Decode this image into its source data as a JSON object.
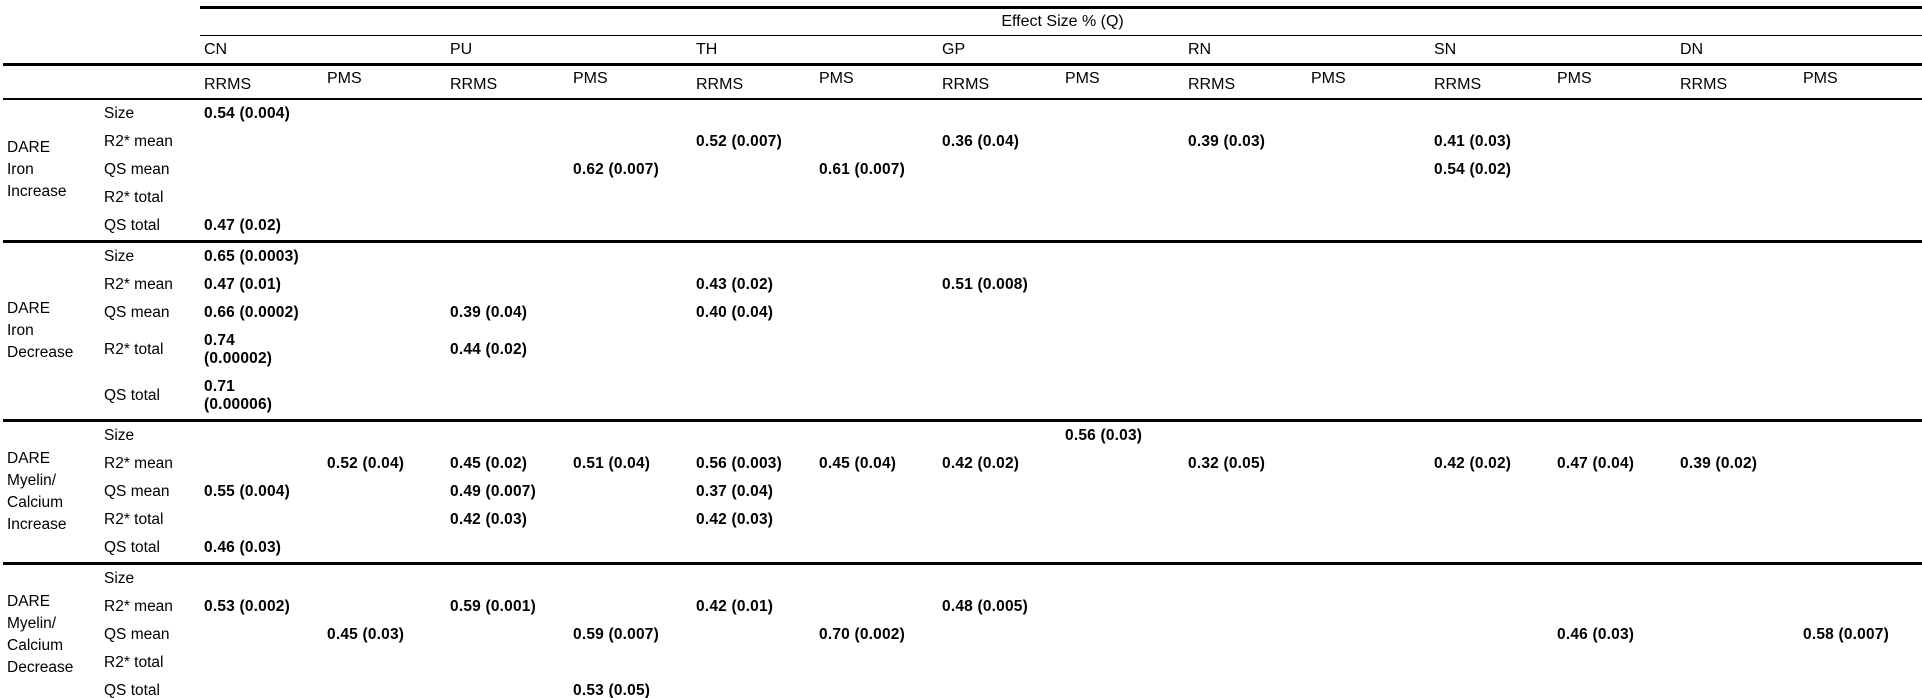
{
  "table": {
    "title": "Effect Size % (Q)",
    "regions": [
      "CN",
      "PU",
      "TH",
      "GP",
      "RN",
      "SN",
      "DN"
    ],
    "subcolumns": [
      "RRMS",
      "PMS"
    ],
    "row_labels": [
      "Size",
      "R2* mean",
      "QS mean",
      "R2* total",
      "QS total"
    ],
    "column_order": [
      "CN RRMS",
      "CN PMS",
      "PU RRMS",
      "PU PMS",
      "TH RRMS",
      "TH PMS",
      "GP RRMS",
      "GP PMS",
      "RN RRMS",
      "RN PMS",
      "SN RRMS",
      "SN PMS",
      "DN RRMS",
      "DN PMS"
    ],
    "groups": [
      {
        "label": "DARE\nIron\nIncrease",
        "rows": [
          {
            "label": "Size",
            "cells": [
              "0.54 (0.004)",
              "",
              "",
              "",
              "",
              "",
              "",
              "",
              "",
              "",
              "",
              "",
              "",
              ""
            ]
          },
          {
            "label": "R2* mean",
            "cells": [
              "",
              "",
              "",
              "",
              "0.52 (0.007)",
              "",
              "0.36 (0.04)",
              "",
              "0.39 (0.03)",
              "",
              "0.41 (0.03)",
              "",
              "",
              ""
            ]
          },
          {
            "label": "QS mean",
            "cells": [
              "",
              "",
              "",
              "0.62 (0.007)",
              "",
              "0.61 (0.007)",
              "",
              "",
              "",
              "",
              "0.54 (0.02)",
              "",
              "",
              ""
            ]
          },
          {
            "label": "R2* total",
            "cells": [
              "",
              "",
              "",
              "",
              "",
              "",
              "",
              "",
              "",
              "",
              "",
              "",
              "",
              ""
            ]
          },
          {
            "label": "QS total",
            "cells": [
              "0.47 (0.02)",
              "",
              "",
              "",
              "",
              "",
              "",
              "",
              "",
              "",
              "",
              "",
              "",
              ""
            ]
          }
        ]
      },
      {
        "label": "DARE\nIron\nDecrease",
        "rows": [
          {
            "label": "Size",
            "cells": [
              "0.65 (0.0003)",
              "",
              "",
              "",
              "",
              "",
              "",
              "",
              "",
              "",
              "",
              "",
              "",
              ""
            ]
          },
          {
            "label": "R2* mean",
            "cells": [
              "0.47 (0.01)",
              "",
              "",
              "",
              "0.43 (0.02)",
              "",
              "0.51 (0.008)",
              "",
              "",
              "",
              "",
              "",
              "",
              ""
            ]
          },
          {
            "label": "QS mean",
            "cells": [
              "0.66 (0.0002)",
              "",
              "0.39 (0.04)",
              "",
              "0.40 (0.04)",
              "",
              "",
              "",
              "",
              "",
              "",
              "",
              "",
              ""
            ]
          },
          {
            "label": "R2* total",
            "tall": true,
            "cells": [
              "0.74\n(0.00002)",
              "",
              "0.44 (0.02)",
              "",
              "",
              "",
              "",
              "",
              "",
              "",
              "",
              "",
              "",
              ""
            ]
          },
          {
            "label": "QS total",
            "tall": true,
            "cells": [
              "0.71\n(0.00006)",
              "",
              "",
              "",
              "",
              "",
              "",
              "",
              "",
              "",
              "",
              "",
              "",
              ""
            ]
          }
        ]
      },
      {
        "label": "DARE\nMyelin/\nCalcium\nIncrease",
        "rows": [
          {
            "label": "Size",
            "cells": [
              "",
              "",
              "",
              "",
              "",
              "",
              "",
              "0.56 (0.03)",
              "",
              "",
              "",
              "",
              "",
              ""
            ]
          },
          {
            "label": "R2* mean",
            "cells": [
              "",
              "0.52 (0.04)",
              "0.45 (0.02)",
              "0.51 (0.04)",
              "0.56 (0.003)",
              "0.45 (0.04)",
              "0.42 (0.02)",
              "",
              "0.32 (0.05)",
              "",
              "0.42 (0.02)",
              "0.47 (0.04)",
              "0.39 (0.02)",
              ""
            ]
          },
          {
            "label": "QS mean",
            "cells": [
              "0.55 (0.004)",
              "",
              "0.49 (0.007)",
              "",
              "0.37 (0.04)",
              "",
              "",
              "",
              "",
              "",
              "",
              "",
              "",
              ""
            ]
          },
          {
            "label": "R2* total",
            "cells": [
              "",
              "",
              "0.42 (0.03)",
              "",
              "0.42 (0.03)",
              "",
              "",
              "",
              "",
              "",
              "",
              "",
              "",
              ""
            ]
          },
          {
            "label": "QS total",
            "cells": [
              "0.46 (0.03)",
              "",
              "",
              "",
              "",
              "",
              "",
              "",
              "",
              "",
              "",
              "",
              "",
              ""
            ]
          }
        ]
      },
      {
        "label": "DARE\nMyelin/\nCalcium\nDecrease",
        "rows": [
          {
            "label": "Size",
            "cells": [
              "",
              "",
              "",
              "",
              "",
              "",
              "",
              "",
              "",
              "",
              "",
              "",
              "",
              ""
            ]
          },
          {
            "label": "R2* mean",
            "cells": [
              "0.53 (0.002)",
              "",
              "0.59 (0.001)",
              "",
              "0.42 (0.01)",
              "",
              "0.48 (0.005)",
              "",
              "",
              "",
              "",
              "",
              "",
              ""
            ]
          },
          {
            "label": "QS mean",
            "cells": [
              "",
              "0.45 (0.03)",
              "",
              "0.59 (0.007)",
              "",
              "0.70 (0.002)",
              "",
              "",
              "",
              "",
              "",
              "0.46 (0.03)",
              "",
              "0.58 (0.007)"
            ]
          },
          {
            "label": "R2* total",
            "cells": [
              "",
              "",
              "",
              "",
              "",
              "",
              "",
              "",
              "",
              "",
              "",
              "",
              "",
              ""
            ]
          },
          {
            "label": "QS total",
            "cells": [
              "",
              "",
              "",
              "0.53 (0.05)",
              "",
              "",
              "",
              "",
              "",
              "",
              "",
              "",
              "",
              ""
            ]
          }
        ]
      }
    ]
  }
}
